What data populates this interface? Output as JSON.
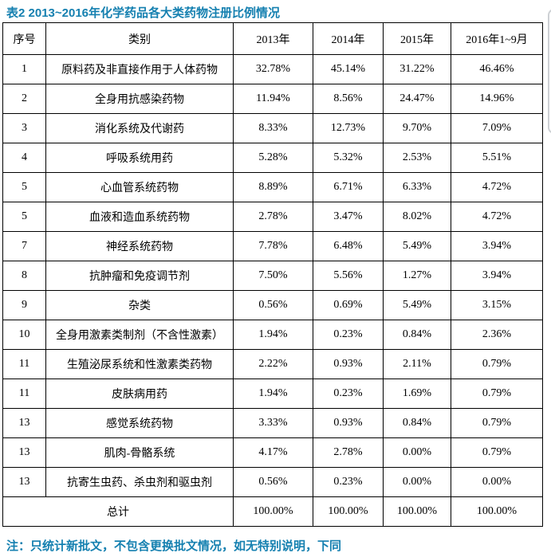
{
  "title": "表2 2013~2016年化学药品各大类药物注册比例情况",
  "note": "注：只统计新批文，不包含更换批文情况，如无特别说明，下同",
  "colors": {
    "accent": "#1580b0",
    "table_border": "#000000",
    "scrollbar": "#cdd0d4"
  },
  "chart_data": {
    "type": "table",
    "title": "表2 2013~2016年化学药品各大类药物注册比例情况",
    "columns": [
      "序号",
      "类别",
      "2013年",
      "2014年",
      "2015年",
      "2016年1~9月"
    ],
    "rows_note": "percent share of chemical drug registrations by ATC-like class"
  },
  "table": {
    "headers": [
      "序号",
      "类别",
      "2013年",
      "2014年",
      "2015年",
      "2016年1~9月"
    ],
    "rows": [
      {
        "no": "1",
        "category": "原料药及非直接作用于人体药物",
        "values": [
          "32.78%",
          "45.14%",
          "31.22%",
          "46.46%"
        ]
      },
      {
        "no": "2",
        "category": "全身用抗感染药物",
        "values": [
          "11.94%",
          "8.56%",
          "24.47%",
          "14.96%"
        ]
      },
      {
        "no": "3",
        "category": "消化系统及代谢药",
        "values": [
          "8.33%",
          "12.73%",
          "9.70%",
          "7.09%"
        ]
      },
      {
        "no": "4",
        "category": "呼吸系统用药",
        "values": [
          "5.28%",
          "5.32%",
          "2.53%",
          "5.51%"
        ]
      },
      {
        "no": "5",
        "category": "心血管系统药物",
        "values": [
          "8.89%",
          "6.71%",
          "6.33%",
          "4.72%"
        ]
      },
      {
        "no": "5",
        "category": "血液和造血系统药物",
        "values": [
          "2.78%",
          "3.47%",
          "8.02%",
          "4.72%"
        ]
      },
      {
        "no": "7",
        "category": "神经系统药物",
        "values": [
          "7.78%",
          "6.48%",
          "5.49%",
          "3.94%"
        ]
      },
      {
        "no": "8",
        "category": "抗肿瘤和免疫调节剂",
        "values": [
          "7.50%",
          "5.56%",
          "1.27%",
          "3.94%"
        ]
      },
      {
        "no": "9",
        "category": "杂类",
        "values": [
          "0.56%",
          "0.69%",
          "5.49%",
          "3.15%"
        ]
      },
      {
        "no": "10",
        "category": "全身用激素类制剂（不含性激素）",
        "values": [
          "1.94%",
          "0.23%",
          "0.84%",
          "2.36%"
        ]
      },
      {
        "no": "11",
        "category": "生殖泌尿系统和性激素类药物",
        "values": [
          "2.22%",
          "0.93%",
          "2.11%",
          "0.79%"
        ]
      },
      {
        "no": "11",
        "category": "皮肤病用药",
        "values": [
          "1.94%",
          "0.23%",
          "1.69%",
          "0.79%"
        ]
      },
      {
        "no": "13",
        "category": "感觉系统药物",
        "values": [
          "3.33%",
          "0.93%",
          "0.84%",
          "0.79%"
        ]
      },
      {
        "no": "13",
        "category": "肌肉-骨骼系统",
        "values": [
          "4.17%",
          "2.78%",
          "0.00%",
          "0.79%"
        ]
      },
      {
        "no": "13",
        "category": "抗寄生虫药、杀虫剂和驱虫剂",
        "values": [
          "0.56%",
          "0.23%",
          "0.00%",
          "0.00%"
        ]
      }
    ],
    "total": {
      "label": "总计",
      "values": [
        "100.00%",
        "100.00%",
        "100.00%",
        "100.00%"
      ]
    }
  }
}
